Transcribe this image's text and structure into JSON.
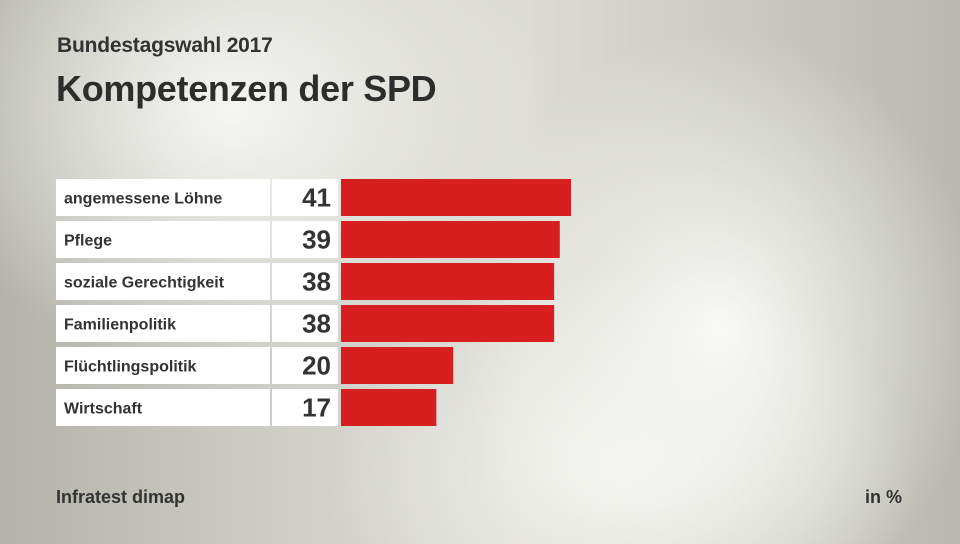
{
  "header": {
    "subtitle": "Bundestagswahl 2017",
    "title": "Kompetenzen der SPD"
  },
  "footer": {
    "source": "Infratest dimap",
    "unit": "in %"
  },
  "colors": {
    "bar": "#d71f20",
    "label_bg": "#ffffff",
    "text": "#333333"
  },
  "chart_data": {
    "type": "bar",
    "orientation": "horizontal",
    "title": "Kompetenzen der SPD",
    "subtitle": "Bundestagswahl 2017",
    "xlabel": "",
    "ylabel": "",
    "unit": "in %",
    "source": "Infratest dimap",
    "categories": [
      "angemessene Löhne",
      "Pflege",
      "soziale Gerechtigkeit",
      "Familienpolitik",
      "Flüchtlingspolitik",
      "Wirtschaft"
    ],
    "values": [
      41,
      39,
      38,
      38,
      20,
      17
    ],
    "xlim": [
      0,
      41
    ],
    "grid": false,
    "legend": "none"
  }
}
